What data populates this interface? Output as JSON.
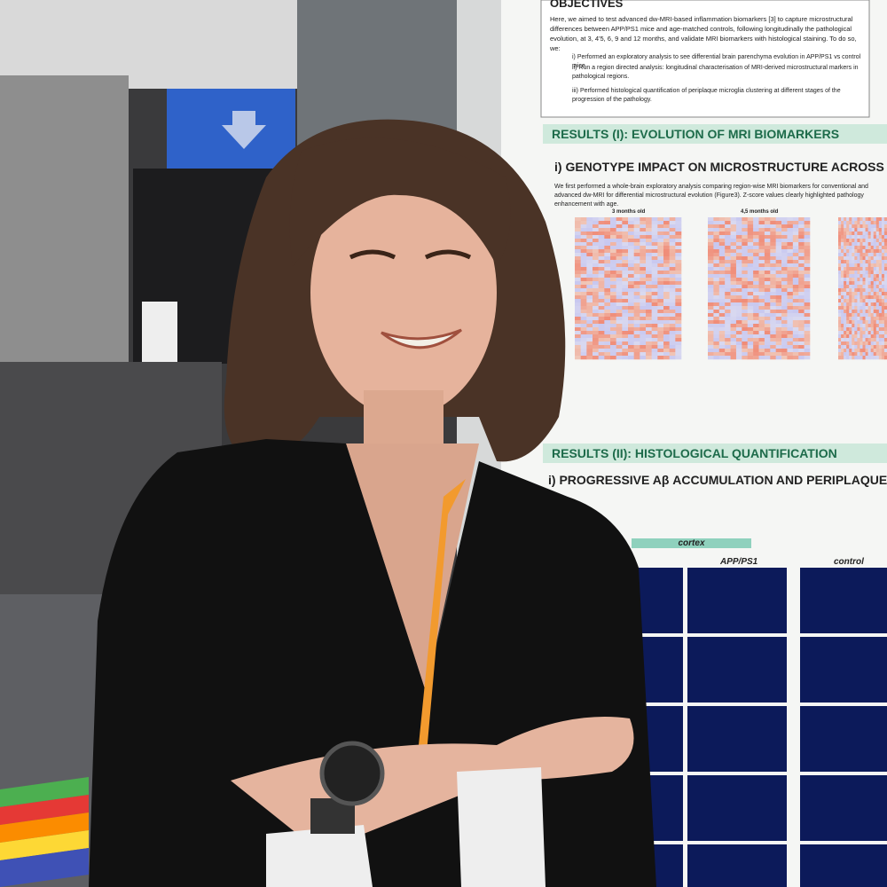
{
  "poster": {
    "objectives": {
      "title": "OBJECTIVES",
      "intro": "Here, we aimed to test advanced dw-MRI-based inflammation biomarkers [3] to capture microstructural differences between APP/PS1 mice and age-matched controls, following longitudinally the pathological evolution, at 3, 4'5, 6, 9 and 12 months, and validate MRI biomarkers with histological staining. To do so, we:",
      "items": [
        "i) Performed an exploratory analysis to see differential brain parenchyma evolution in APP/PS1 vs control mice.",
        "ii) Run a region directed analysis: longitudinal characterisation of MRI-derived microstructural markers in pathological regions.",
        "iii) Performed histological quantification of periplaque microglia clustering at different stages of the progression of the pathology."
      ]
    },
    "results1": {
      "title": "RESULTS (I): EVOLUTION OF MRI BIOMARKERS",
      "subtitle": "i) GENOTYPE IMPACT ON MICROSTRUCTURE ACROSS DISEA",
      "text": "We first performed a whole-brain exploratory analysis comparing region-wise MRI biomarkers for conventional and advanced dw-MRI for differential microstructural evolution (Figure3). Z-score values clearly highlighted pathology enhancement with age.",
      "heatmap_labels": [
        "3 months old",
        "4,5 months old"
      ]
    },
    "results2": {
      "title": "RESULTS (II): HISTOLOGICAL QUANTIFICATION",
      "subtitle": "i) PROGRESSIVE Aβ ACCUMULATION AND PERIPLAQUE-MICR",
      "columns": [
        "cortex",
        "APP/PS1",
        "control"
      ]
    }
  }
}
